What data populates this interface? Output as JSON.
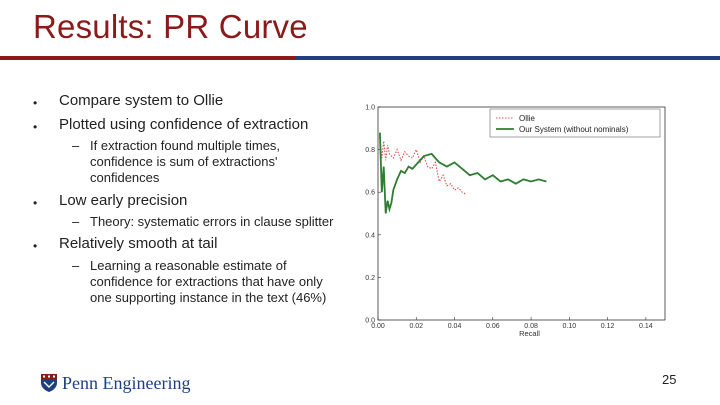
{
  "slide": {
    "title": "Results: PR Curve",
    "bullets": [
      {
        "text": "Compare system to Ollie"
      },
      {
        "text": "Plotted using confidence of extraction",
        "sub": [
          "If extraction found multiple times, confidence is sum of extractions' confidences"
        ]
      },
      {
        "text": "Low early precision",
        "sub": [
          "Theory: systematic errors in clause splitter"
        ]
      },
      {
        "text": "Relatively smooth at tail",
        "sub": [
          "Learning a reasonable estimate of confidence for extractions that have only one supporting instance in the text (46%)"
        ]
      }
    ],
    "sub_lines": {
      "s1": [
        "If extraction found multiple times,",
        "confidence is sum of extractions'",
        "confidences"
      ],
      "s2": [
        "Theory: systematic errors in clause splitter"
      ],
      "s3": [
        "Learning a reasonable estimate of",
        "confidence for extractions that have only",
        "one supporting instance in the text (46%)"
      ]
    },
    "bullet_glyph": "•",
    "dash_glyph": "–",
    "logo_text": "Penn Engineering",
    "page_number": "25"
  },
  "colors": {
    "title": "#8b1a1a",
    "rule_left": "#8b1a1a",
    "rule_right": "#1f3f7f",
    "ollie": "#e05050",
    "system": "#2e7d32"
  },
  "chart_data": {
    "type": "line",
    "xlabel": "Recall",
    "ylabel": "",
    "xlim": [
      0,
      0.15
    ],
    "ylim": [
      0,
      1.0
    ],
    "xticks": [
      "0.00",
      "0.02",
      "0.04",
      "0.06",
      "0.08",
      "0.10",
      "0.12",
      "0.14"
    ],
    "yticks": [
      "0.0",
      "0.2",
      "0.4",
      "0.6",
      "0.8",
      "1.0"
    ],
    "legend_position": "top-right",
    "series": [
      {
        "name": "Ollie",
        "style": "dotted",
        "color": "#e05050",
        "x": [
          0.001,
          0.002,
          0.003,
          0.004,
          0.005,
          0.006,
          0.008,
          0.01,
          0.012,
          0.014,
          0.016,
          0.018,
          0.02,
          0.022,
          0.024,
          0.026,
          0.028,
          0.03,
          0.032,
          0.034,
          0.036,
          0.038,
          0.04,
          0.042,
          0.044,
          0.046
        ],
        "y": [
          0.86,
          0.76,
          0.84,
          0.75,
          0.82,
          0.78,
          0.76,
          0.8,
          0.75,
          0.79,
          0.77,
          0.76,
          0.8,
          0.74,
          0.77,
          0.72,
          0.71,
          0.74,
          0.65,
          0.68,
          0.63,
          0.64,
          0.61,
          0.62,
          0.6,
          0.59
        ]
      },
      {
        "name": "Our System (without nominals)",
        "style": "solid",
        "color": "#2e7d32",
        "x": [
          0.001,
          0.002,
          0.003,
          0.004,
          0.005,
          0.006,
          0.007,
          0.008,
          0.01,
          0.012,
          0.014,
          0.016,
          0.018,
          0.02,
          0.024,
          0.028,
          0.032,
          0.036,
          0.04,
          0.044,
          0.048,
          0.052,
          0.056,
          0.06,
          0.064,
          0.068,
          0.072,
          0.076,
          0.08,
          0.084,
          0.088
        ],
        "y": [
          0.88,
          0.6,
          0.72,
          0.5,
          0.56,
          0.52,
          0.55,
          0.61,
          0.66,
          0.7,
          0.69,
          0.72,
          0.71,
          0.73,
          0.77,
          0.78,
          0.74,
          0.72,
          0.74,
          0.71,
          0.68,
          0.69,
          0.66,
          0.68,
          0.65,
          0.66,
          0.64,
          0.66,
          0.65,
          0.66,
          0.65
        ]
      }
    ]
  }
}
